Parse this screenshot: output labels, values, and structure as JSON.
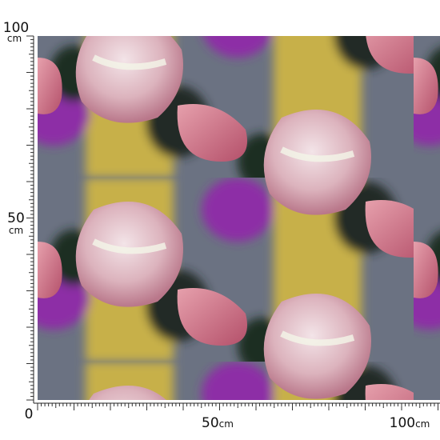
{
  "left_ruler": {
    "top": "100",
    "top_unit": "cm",
    "middle": "50",
    "middle_unit": "cm",
    "bottom": "0"
  },
  "bottom_ruler": {
    "middle": "50",
    "middle_unit": "cm",
    "right": "100",
    "right_unit": "cm"
  }
}
